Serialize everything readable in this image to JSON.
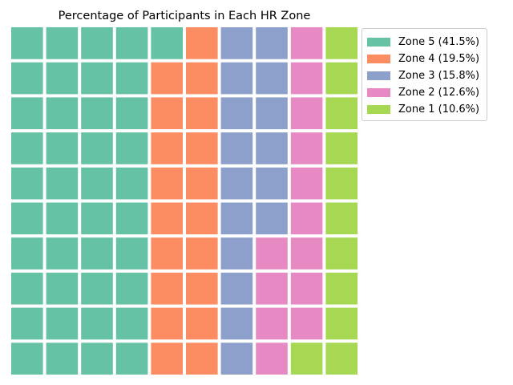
{
  "chart_data": {
    "type": "waffle",
    "title": "Percentage of Participants in Each HR Zone",
    "rows": 10,
    "columns": 10,
    "series": [
      {
        "name": "Zone 5 (41.5%)",
        "label": "Zone 5",
        "percent": 41.5,
        "squares": 41,
        "color": "#66c2a5"
      },
      {
        "name": "Zone 4 (19.5%)",
        "label": "Zone 4",
        "percent": 19.5,
        "squares": 19,
        "color": "#fc8d62"
      },
      {
        "name": "Zone 3 (15.8%)",
        "label": "Zone 3",
        "percent": 15.8,
        "squares": 16,
        "color": "#8da0cb"
      },
      {
        "name": "Zone 2 (12.6%)",
        "label": "Zone 2",
        "percent": 12.6,
        "squares": 13,
        "color": "#e78ac3"
      },
      {
        "name": "Zone 1 (10.6%)",
        "label": "Zone 1",
        "percent": 10.6,
        "squares": 11,
        "color": "#a6d854"
      }
    ],
    "legend": "top-right",
    "grid": false
  }
}
